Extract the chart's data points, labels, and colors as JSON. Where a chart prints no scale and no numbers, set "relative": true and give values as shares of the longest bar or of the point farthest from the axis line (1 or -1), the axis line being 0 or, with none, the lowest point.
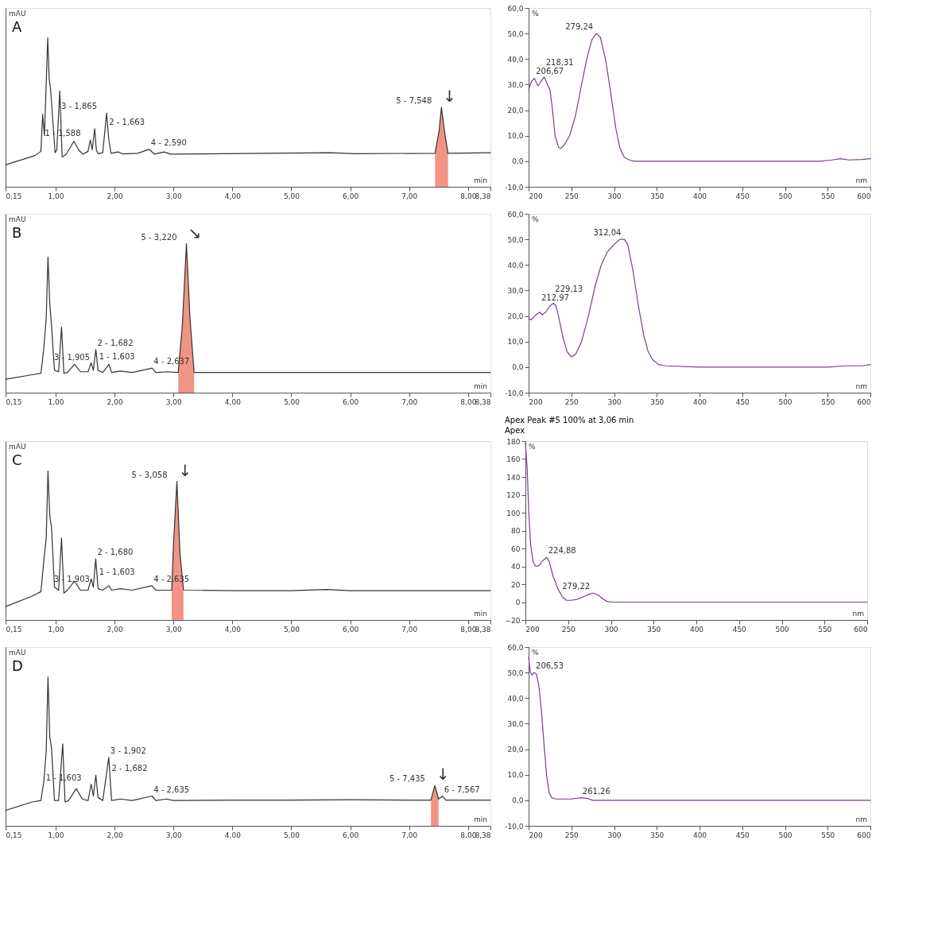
{
  "chart_data": [
    {
      "type": "line",
      "title": "A",
      "ylabel": "mAU",
      "xlabel": "min",
      "relative": true,
      "xlim": [
        0.15,
        8.38
      ],
      "xticks": [
        {
          "value": 0.15,
          "label": "0,15"
        },
        {
          "value": 1,
          "label": "1,00"
        },
        {
          "value": 2,
          "label": "2,00"
        },
        {
          "value": 3,
          "label": "3,00"
        },
        {
          "value": 4,
          "label": "4,00"
        },
        {
          "value": 5,
          "label": "5,00"
        },
        {
          "value": 6,
          "label": "6,00"
        },
        {
          "value": 7,
          "label": "7,00"
        },
        {
          "value": 8,
          "label": "8,00"
        },
        {
          "value": 8.38,
          "label": "8,38"
        }
      ],
      "series": [
        {
          "type": "line",
          "color": "#333333",
          "x": [
            0.15,
            0.65,
            0.75,
            0.78,
            0.81,
            0.866,
            0.89,
            0.916,
            0.99,
            1.02,
            1.07,
            1.11,
            1.18,
            1.31,
            1.39,
            1.46,
            1.55,
            1.588,
            1.62,
            1.663,
            1.69,
            1.72,
            1.8,
            1.865,
            1.9,
            1.94,
            2.06,
            2.14,
            2.39,
            2.59,
            2.68,
            2.84,
            2.95,
            3.85,
            5.64,
            6.09,
            7.44,
            7.51,
            7.548,
            7.61,
            7.66,
            8.38
          ],
          "values": [
            0.147,
            0.21,
            0.238,
            0.486,
            0.343,
            1.0,
            0.724,
            0.648,
            0.229,
            0.248,
            0.644,
            0.2,
            0.219,
            0.305,
            0.248,
            0.219,
            0.238,
            0.314,
            0.248,
            0.39,
            0.248,
            0.222,
            0.229,
            0.495,
            0.324,
            0.225,
            0.234,
            0.221,
            0.225,
            0.251,
            0.219,
            0.234,
            0.219,
            0.222,
            0.229,
            0.222,
            0.225,
            0.381,
            0.533,
            0.343,
            0.225,
            0.229
          ]
        },
        {
          "type": "area",
          "color": "#f08878",
          "x": [
            7.44,
            7.51,
            7.548,
            7.61,
            7.66
          ],
          "values": [
            0.225,
            0.381,
            0.533,
            0.343,
            0.225
          ]
        }
      ],
      "annotations": [
        {
          "text": "1 - 1,588",
          "x": 1.588,
          "y": 0.314
        },
        {
          "text": "2 - 1,663",
          "x": 1.663,
          "y": 0.39
        },
        {
          "text": "3 - 1,865",
          "x": 1.865,
          "y": 0.495
        },
        {
          "text": "4 - 2,590",
          "x": 2.59,
          "y": 0.251
        },
        {
          "text": "5 - 7,548",
          "x": 7.548,
          "y": 0.533
        },
        {
          "text": "↓",
          "x": 7.548,
          "y": 0.533
        }
      ]
    },
    {
      "type": "line",
      "ylabel": "%",
      "xlabel": "nm",
      "xlim": [
        200,
        600
      ],
      "xticks": [
        200,
        250,
        300,
        350,
        400,
        450,
        500,
        550,
        600
      ],
      "ylim": [
        -10,
        60
      ],
      "yticks": [
        {
          "value": -10,
          "label": "-10,0"
        },
        {
          "value": 0,
          "label": "0,0"
        },
        {
          "value": 10,
          "label": "10,0"
        },
        {
          "value": 20,
          "label": "20,0"
        },
        {
          "value": 30,
          "label": "30,0"
        },
        {
          "value": 40,
          "label": "40,0"
        },
        {
          "value": 50,
          "label": "50,0"
        },
        {
          "value": 60,
          "label": "60,0"
        }
      ],
      "series": [
        {
          "type": "line",
          "color": "#7b3f8f",
          "x": [
            200,
            203,
            206.67,
            211,
            214,
            218.31,
            222,
            225,
            228,
            231,
            235,
            238,
            242,
            248,
            255,
            262,
            268,
            274,
            279.24,
            284,
            290,
            296,
            302,
            307,
            312,
            318,
            325,
            350,
            400,
            450,
            500,
            540,
            555,
            565,
            575,
            590,
            600
          ],
          "values": [
            28,
            31,
            32.5,
            29.5,
            31,
            33,
            30,
            28,
            20,
            10,
            5.5,
            5,
            6.5,
            10,
            18,
            30,
            40,
            47.5,
            50,
            48.5,
            40,
            27,
            13,
            5,
            1.5,
            0.5,
            0,
            0,
            0,
            0,
            0,
            0,
            0.5,
            1,
            0.5,
            0.7,
            1
          ]
        }
      ],
      "annotations": [
        {
          "text": "206,67",
          "x": 206.67,
          "y": 32.5
        },
        {
          "text": "218,31",
          "x": 218.31,
          "y": 33
        },
        {
          "text": "279,24",
          "x": 279.24,
          "y": 50
        }
      ]
    },
    {
      "type": "line",
      "title": "B",
      "ylabel": "mAU",
      "xlabel": "min",
      "relative": true,
      "xlim": [
        0.15,
        8.38
      ],
      "xticks": [
        {
          "value": 0.15,
          "label": "0,15"
        },
        {
          "value": 1,
          "label": "1,00"
        },
        {
          "value": 2,
          "label": "2,00"
        },
        {
          "value": 3,
          "label": "3,00"
        },
        {
          "value": 4,
          "label": "4,00"
        },
        {
          "value": 5,
          "label": "5,00"
        },
        {
          "value": 6,
          "label": "6,00"
        },
        {
          "value": 7,
          "label": "7,00"
        },
        {
          "value": 8,
          "label": "8,00"
        },
        {
          "value": 8.38,
          "label": "8,38"
        }
      ],
      "series": [
        {
          "type": "line",
          "color": "#333333",
          "x": [
            0.15,
            0.6,
            0.75,
            0.8,
            0.84,
            0.87,
            0.9,
            0.93,
            0.98,
            1.05,
            1.1,
            1.14,
            1.2,
            1.32,
            1.42,
            1.55,
            1.603,
            1.64,
            1.682,
            1.72,
            1.8,
            1.905,
            1.95,
            2.1,
            2.3,
            2.637,
            2.7,
            2.9,
            3.08,
            3.15,
            3.22,
            3.28,
            3.35,
            4,
            5,
            6,
            7,
            8.38
          ],
          "values": [
            0.09,
            0.12,
            0.13,
            0.3,
            0.5,
            0.91,
            0.6,
            0.45,
            0.15,
            0.14,
            0.44,
            0.13,
            0.135,
            0.19,
            0.14,
            0.14,
            0.2,
            0.15,
            0.29,
            0.15,
            0.135,
            0.19,
            0.135,
            0.145,
            0.135,
            0.165,
            0.135,
            0.14,
            0.135,
            0.45,
            1.0,
            0.5,
            0.135,
            0.135,
            0.135,
            0.135,
            0.135,
            0.135
          ]
        },
        {
          "type": "area",
          "color": "#f08878",
          "x": [
            3.08,
            3.15,
            3.22,
            3.28,
            3.35
          ],
          "values": [
            0.135,
            0.45,
            1.0,
            0.5,
            0.135
          ]
        }
      ],
      "annotations": [
        {
          "text": "1 - 1,603",
          "x": 1.603,
          "y": 0.2
        },
        {
          "text": "2 - 1,682",
          "x": 1.682,
          "y": 0.29
        },
        {
          "text": "3 - 1,905",
          "x": 1.905,
          "y": 0.19
        },
        {
          "text": "4 - 2,637",
          "x": 2.637,
          "y": 0.165
        },
        {
          "text": "5 - 3,220",
          "x": 3.22,
          "y": 1.0
        },
        {
          "text": "↘",
          "x": 3.22,
          "y": 1.0
        }
      ]
    },
    {
      "type": "line",
      "ylabel": "%",
      "xlabel": "nm",
      "xlim": [
        200,
        600
      ],
      "xticks": [
        200,
        250,
        300,
        350,
        400,
        450,
        500,
        550,
        600
      ],
      "ylim": [
        -10,
        60
      ],
      "yticks": [
        {
          "value": -10,
          "label": "-10,0"
        },
        {
          "value": 0,
          "label": "0,0"
        },
        {
          "value": 10,
          "label": "10,0"
        },
        {
          "value": 20,
          "label": "20,0"
        },
        {
          "value": 30,
          "label": "30,0"
        },
        {
          "value": 40,
          "label": "40,0"
        },
        {
          "value": 50,
          "label": "50,0"
        },
        {
          "value": 60,
          "label": "60,0"
        }
      ],
      "series": [
        {
          "type": "line",
          "color": "#7b3f8f",
          "x": [
            200,
            203,
            207,
            212.97,
            216,
            220,
            225,
            229.13,
            232,
            235,
            240,
            245,
            250,
            255,
            262,
            270,
            278,
            285,
            292,
            300,
            307,
            312.04,
            316,
            322,
            328,
            335,
            340,
            345,
            352,
            360,
            400,
            500,
            550,
            570,
            590,
            600
          ],
          "values": [
            19,
            18.5,
            20,
            21.5,
            20.5,
            21.5,
            24,
            25,
            24,
            20,
            12,
            6,
            4,
            5,
            10,
            20,
            32,
            40,
            45,
            48,
            50,
            50,
            48,
            38,
            25,
            12,
            6,
            3,
            1,
            0.5,
            0,
            0,
            0,
            0.5,
            0.5,
            1
          ]
        }
      ],
      "annotations": [
        {
          "text": "212,97",
          "x": 212.97,
          "y": 21.5
        },
        {
          "text": "229,13",
          "x": 229.13,
          "y": 25
        },
        {
          "text": "312,04",
          "x": 312.04,
          "y": 50
        }
      ]
    },
    {
      "type": "line",
      "title": "C",
      "ylabel": "mAU",
      "xlabel": "min",
      "relative": true,
      "xlim": [
        0.15,
        8.38
      ],
      "xticks": [
        {
          "value": 0.15,
          "label": "0,15"
        },
        {
          "value": 1,
          "label": "1,00"
        },
        {
          "value": 2,
          "label": "2,00"
        },
        {
          "value": 3,
          "label": "3,00"
        },
        {
          "value": 4,
          "label": "4,00"
        },
        {
          "value": 5,
          "label": "5,00"
        },
        {
          "value": 6,
          "label": "6,00"
        },
        {
          "value": 7,
          "label": "7,00"
        },
        {
          "value": 8,
          "label": "8,00"
        },
        {
          "value": 8.38,
          "label": "8,38"
        }
      ],
      "series": [
        {
          "type": "line",
          "color": "#333333",
          "x": [
            0.15,
            0.6,
            0.75,
            0.8,
            0.84,
            0.87,
            0.9,
            0.93,
            0.98,
            1.05,
            1.1,
            1.14,
            1.2,
            1.32,
            1.42,
            1.55,
            1.603,
            1.64,
            1.68,
            1.72,
            1.8,
            1.903,
            1.95,
            2.1,
            2.3,
            2.635,
            2.7,
            2.9,
            2.97,
            3.0,
            3.058,
            3.11,
            3.17,
            4,
            5,
            5.6,
            6,
            7,
            8.38
          ],
          "values": [
            0.09,
            0.16,
            0.19,
            0.4,
            0.55,
            1.0,
            0.7,
            0.62,
            0.22,
            0.2,
            0.55,
            0.18,
            0.2,
            0.26,
            0.2,
            0.2,
            0.275,
            0.22,
            0.41,
            0.21,
            0.2,
            0.23,
            0.2,
            0.21,
            0.2,
            0.23,
            0.2,
            0.2,
            0.2,
            0.5,
            0.93,
            0.45,
            0.2,
            0.197,
            0.197,
            0.205,
            0.197,
            0.197,
            0.197
          ]
        },
        {
          "type": "area",
          "color": "#f08878",
          "x": [
            2.97,
            3.0,
            3.058,
            3.11,
            3.17
          ],
          "values": [
            0.2,
            0.5,
            0.93,
            0.45,
            0.2
          ]
        }
      ],
      "annotations": [
        {
          "text": "1 - 1,603",
          "x": 1.603,
          "y": 0.275
        },
        {
          "text": "2 - 1,680",
          "x": 1.68,
          "y": 0.41
        },
        {
          "text": "3 - 1,903",
          "x": 1.903,
          "y": 0.23
        },
        {
          "text": "4 - 2,635",
          "x": 2.635,
          "y": 0.23
        },
        {
          "text": "5 - 3,058",
          "x": 3.058,
          "y": 0.93
        },
        {
          "text": "↓",
          "x": 3.058,
          "y": 0.93
        }
      ]
    },
    {
      "type": "line",
      "title": "Apex Peak #5 100% at 3,06 min",
      "subtitle": "Apex",
      "ylabel": "%",
      "xlabel": "nm",
      "xlim": [
        200,
        600
      ],
      "xticks": [
        200,
        250,
        300,
        350,
        400,
        450,
        500,
        550,
        600
      ],
      "ylim": [
        -20,
        180
      ],
      "yticks": [
        -20,
        0,
        20,
        40,
        60,
        80,
        100,
        120,
        140,
        160,
        180
      ],
      "series": [
        {
          "type": "line",
          "color": "#7b3f8f",
          "x": [
            200,
            202,
            204,
            206,
            209,
            212,
            216,
            220,
            224.88,
            228,
            232,
            238,
            243,
            248,
            253,
            260,
            268,
            275,
            279.22,
            285,
            290,
            295,
            300,
            350,
            400,
            500,
            600
          ],
          "values": [
            178,
            150,
            100,
            65,
            45,
            40,
            41,
            46,
            50,
            45,
            30,
            15,
            6,
            2,
            2,
            3,
            6,
            9,
            10,
            8,
            4,
            1,
            0,
            0,
            0,
            0,
            0
          ]
        }
      ],
      "annotations": [
        {
          "text": "224,88",
          "x": 224.88,
          "y": 50
        },
        {
          "text": "279,22",
          "x": 279.22,
          "y": 10
        }
      ]
    },
    {
      "type": "line",
      "title": "D",
      "ylabel": "mAU",
      "xlabel": "min",
      "relative": true,
      "xlim": [
        0.15,
        8.38
      ],
      "xticks": [
        {
          "value": 0.15,
          "label": "0,15"
        },
        {
          "value": 1,
          "label": "1,00"
        },
        {
          "value": 2,
          "label": "2,00"
        },
        {
          "value": 3,
          "label": "3,00"
        },
        {
          "value": 4,
          "label": "4,00"
        },
        {
          "value": 5,
          "label": "5,00"
        },
        {
          "value": 6,
          "label": "6,00"
        },
        {
          "value": 7,
          "label": "7,00"
        },
        {
          "value": 8,
          "label": "8,00"
        },
        {
          "value": 8.38,
          "label": "8,38"
        }
      ],
      "series": [
        {
          "type": "line",
          "color": "#333333",
          "x": [
            0.15,
            0.6,
            0.75,
            0.8,
            0.84,
            0.87,
            0.9,
            0.93,
            0.98,
            1.05,
            1.12,
            1.16,
            1.22,
            1.35,
            1.45,
            1.55,
            1.603,
            1.64,
            1.682,
            1.72,
            1.8,
            1.902,
            1.95,
            2.1,
            2.3,
            2.635,
            2.7,
            2.88,
            3.0,
            4,
            5,
            6,
            7,
            7.37,
            7.435,
            7.5,
            7.567,
            7.62,
            8.38
          ],
          "values": [
            0.104,
            0.16,
            0.17,
            0.3,
            0.5,
            1.0,
            0.6,
            0.52,
            0.17,
            0.17,
            0.55,
            0.16,
            0.17,
            0.25,
            0.18,
            0.17,
            0.28,
            0.2,
            0.34,
            0.19,
            0.17,
            0.46,
            0.17,
            0.18,
            0.17,
            0.2,
            0.17,
            0.18,
            0.17,
            0.173,
            0.173,
            0.175,
            0.173,
            0.173,
            0.27,
            0.18,
            0.2,
            0.173,
            0.173
          ]
        },
        {
          "type": "area",
          "color": "#f08878",
          "x": [
            7.37,
            7.435,
            7.5
          ],
          "values": [
            0.173,
            0.27,
            0.18
          ]
        }
      ],
      "annotations": [
        {
          "text": "1 - 1,603",
          "x": 1.603,
          "y": 0.28
        },
        {
          "text": "2 - 1,682",
          "x": 1.682,
          "y": 0.34
        },
        {
          "text": "3 - 1,902",
          "x": 1.902,
          "y": 0.46
        },
        {
          "text": "4 - 2,635",
          "x": 2.635,
          "y": 0.2
        },
        {
          "text": "5 - 7,435",
          "x": 7.435,
          "y": 0.27
        },
        {
          "text": "6 - 7,567",
          "x": 7.567,
          "y": 0.2
        },
        {
          "text": "↓",
          "x": 7.435,
          "y": 0.27
        }
      ]
    },
    {
      "type": "line",
      "ylabel": "%",
      "xlabel": "nm",
      "xlim": [
        200,
        600
      ],
      "xticks": [
        200,
        250,
        300,
        350,
        400,
        450,
        500,
        550,
        600
      ],
      "ylim": [
        -10,
        60
      ],
      "yticks": [
        {
          "value": -10,
          "label": "-10,0"
        },
        {
          "value": 0,
          "label": "0,0"
        },
        {
          "value": 10,
          "label": "10,0"
        },
        {
          "value": 20,
          "label": "20,0"
        },
        {
          "value": 30,
          "label": "30,0"
        },
        {
          "value": 40,
          "label": "40,0"
        },
        {
          "value": 50,
          "label": "50,0"
        },
        {
          "value": 60,
          "label": "60,0"
        }
      ],
      "series": [
        {
          "type": "line",
          "color": "#7b3f8f",
          "x": [
            200,
            202,
            204,
            206.53,
            209,
            212,
            215,
            218,
            221,
            224,
            227,
            232,
            250,
            261.26,
            268,
            275,
            300,
            400,
            500,
            600
          ],
          "values": [
            56,
            50,
            49,
            50,
            49.5,
            45,
            35,
            22,
            10,
            3,
            1,
            0.5,
            0.5,
            1,
            0.8,
            0,
            0,
            0,
            0,
            0
          ]
        }
      ],
      "annotations": [
        {
          "text": "206,53",
          "x": 206.53,
          "y": 50
        },
        {
          "text": "261,26",
          "x": 261.26,
          "y": 1
        }
      ]
    }
  ]
}
